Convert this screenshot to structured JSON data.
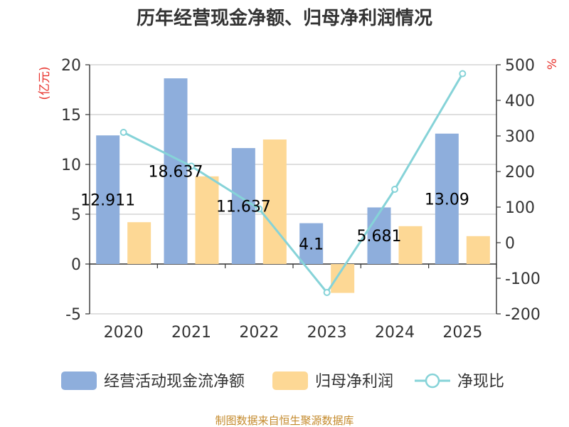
{
  "chart_data": {
    "type": "bar",
    "title": "历年经营现金净额、归母净利润情况",
    "categories": [
      "2020",
      "2021",
      "2022",
      "2023",
      "2024",
      "2025"
    ],
    "series": [
      {
        "name": "经营活动现金流净额",
        "type": "bar",
        "axis": "left",
        "color": "#8eaedc",
        "values": [
          12.911,
          18.637,
          11.637,
          4.1,
          5.681,
          13.09
        ],
        "data_labels": [
          "12.911",
          "18.637",
          "11.637",
          "4.1",
          "5.681",
          "13.09"
        ]
      },
      {
        "name": "归母净利润",
        "type": "bar",
        "axis": "left",
        "color": "#fdd895",
        "values": [
          4.2,
          8.8,
          12.5,
          -2.9,
          3.8,
          2.8
        ]
      },
      {
        "name": "净现比",
        "type": "line",
        "axis": "right",
        "color": "#86d3d8",
        "values": [
          310,
          215,
          95,
          -140,
          150,
          475
        ]
      }
    ],
    "y_left": {
      "unit": "(亿元)",
      "min": -5,
      "max": 20,
      "ticks": [
        -5,
        0,
        5,
        10,
        15,
        20
      ]
    },
    "y_right": {
      "unit": "%",
      "min": -200,
      "max": 500,
      "ticks": [
        -200,
        -100,
        0,
        100,
        200,
        300,
        400,
        500
      ]
    },
    "grid": true,
    "legend_position": "bottom"
  },
  "source": "制图数据来自恒生聚源数据库"
}
